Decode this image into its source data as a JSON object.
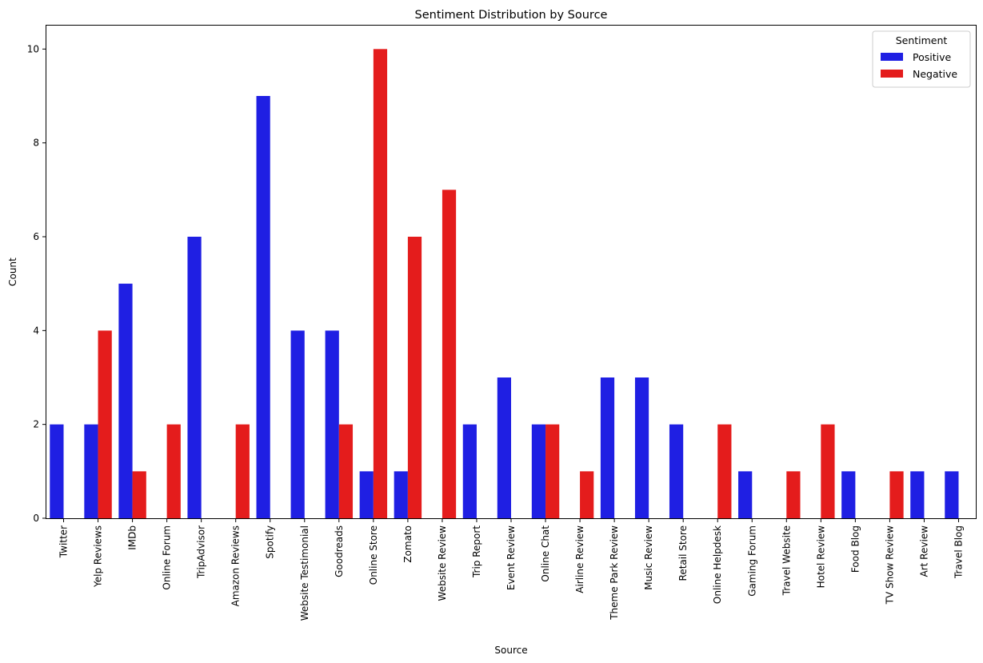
{
  "chart_data": {
    "type": "bar",
    "title": "Sentiment Distribution by Source",
    "xlabel": "Source",
    "ylabel": "Count",
    "ylim": [
      0,
      10.5
    ],
    "yticks": [
      0,
      2,
      4,
      6,
      8,
      10
    ],
    "grid": false,
    "legend": {
      "title": "Sentiment",
      "placement": "top-right"
    },
    "categories": [
      "Twitter",
      "Yelp Reviews",
      "IMDb",
      "Online Forum",
      "TripAdvisor",
      "Amazon Reviews",
      "Spotify",
      "Website Testimonial",
      "Goodreads",
      "Online Store",
      "Zomato",
      "Website Review",
      "Trip Report",
      "Event Review",
      "Online Chat",
      "Airline Review",
      "Theme Park Review",
      "Music Review",
      "Retail Store",
      "Online Helpdesk",
      "Gaming Forum",
      "Travel Website",
      "Hotel Review",
      "Food Blog",
      "TV Show Review",
      "Art Review",
      "Travel Blog"
    ],
    "series": [
      {
        "name": " Positive",
        "color": "#1f1fe3",
        "values": [
          2,
          2,
          5,
          0,
          6,
          0,
          9,
          4,
          4,
          1,
          1,
          0,
          2,
          3,
          2,
          0,
          3,
          3,
          2,
          0,
          1,
          0,
          0,
          1,
          0,
          1,
          1
        ]
      },
      {
        "name": " Negative",
        "color": "#e41c1c",
        "values": [
          0,
          4,
          1,
          2,
          0,
          2,
          0,
          0,
          2,
          10,
          6,
          7,
          0,
          0,
          2,
          1,
          0,
          0,
          0,
          2,
          0,
          1,
          2,
          0,
          1,
          0,
          0
        ]
      }
    ]
  }
}
